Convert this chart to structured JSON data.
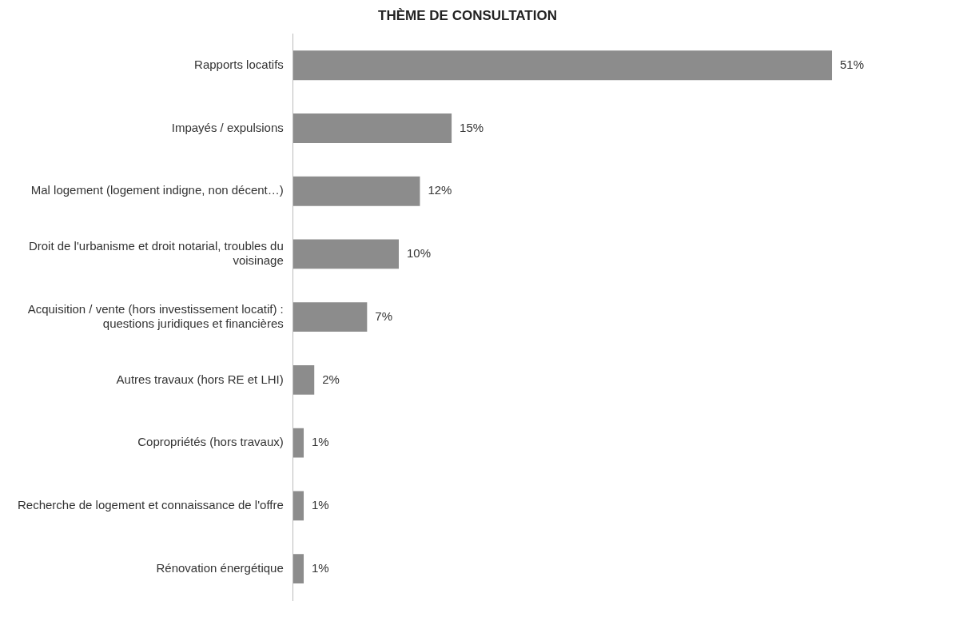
{
  "chart_data": {
    "type": "bar",
    "orientation": "horizontal",
    "title": "THÈME DE CONSULTATION",
    "categories": [
      "Rapports locatifs",
      "Impayés / expulsions",
      "Mal logement (logement indigne, non décent…)",
      "Droit de l'urbanisme et droit notarial, troubles du voisinage",
      "Acquisition / vente (hors investissement locatif) : questions juridiques et financières",
      "Autres travaux (hors RE et LHI)",
      "Copropriétés (hors travaux)",
      "Recherche de logement et connaissance de l'offre",
      "Rénovation énergétique"
    ],
    "values": [
      51,
      15,
      12,
      10,
      7,
      2,
      1,
      1,
      1
    ],
    "value_labels": [
      "51%",
      "15%",
      "12%",
      "10%",
      "7%",
      "2%",
      "1%",
      "1%",
      "1%"
    ],
    "color": "#8c8c8c"
  }
}
